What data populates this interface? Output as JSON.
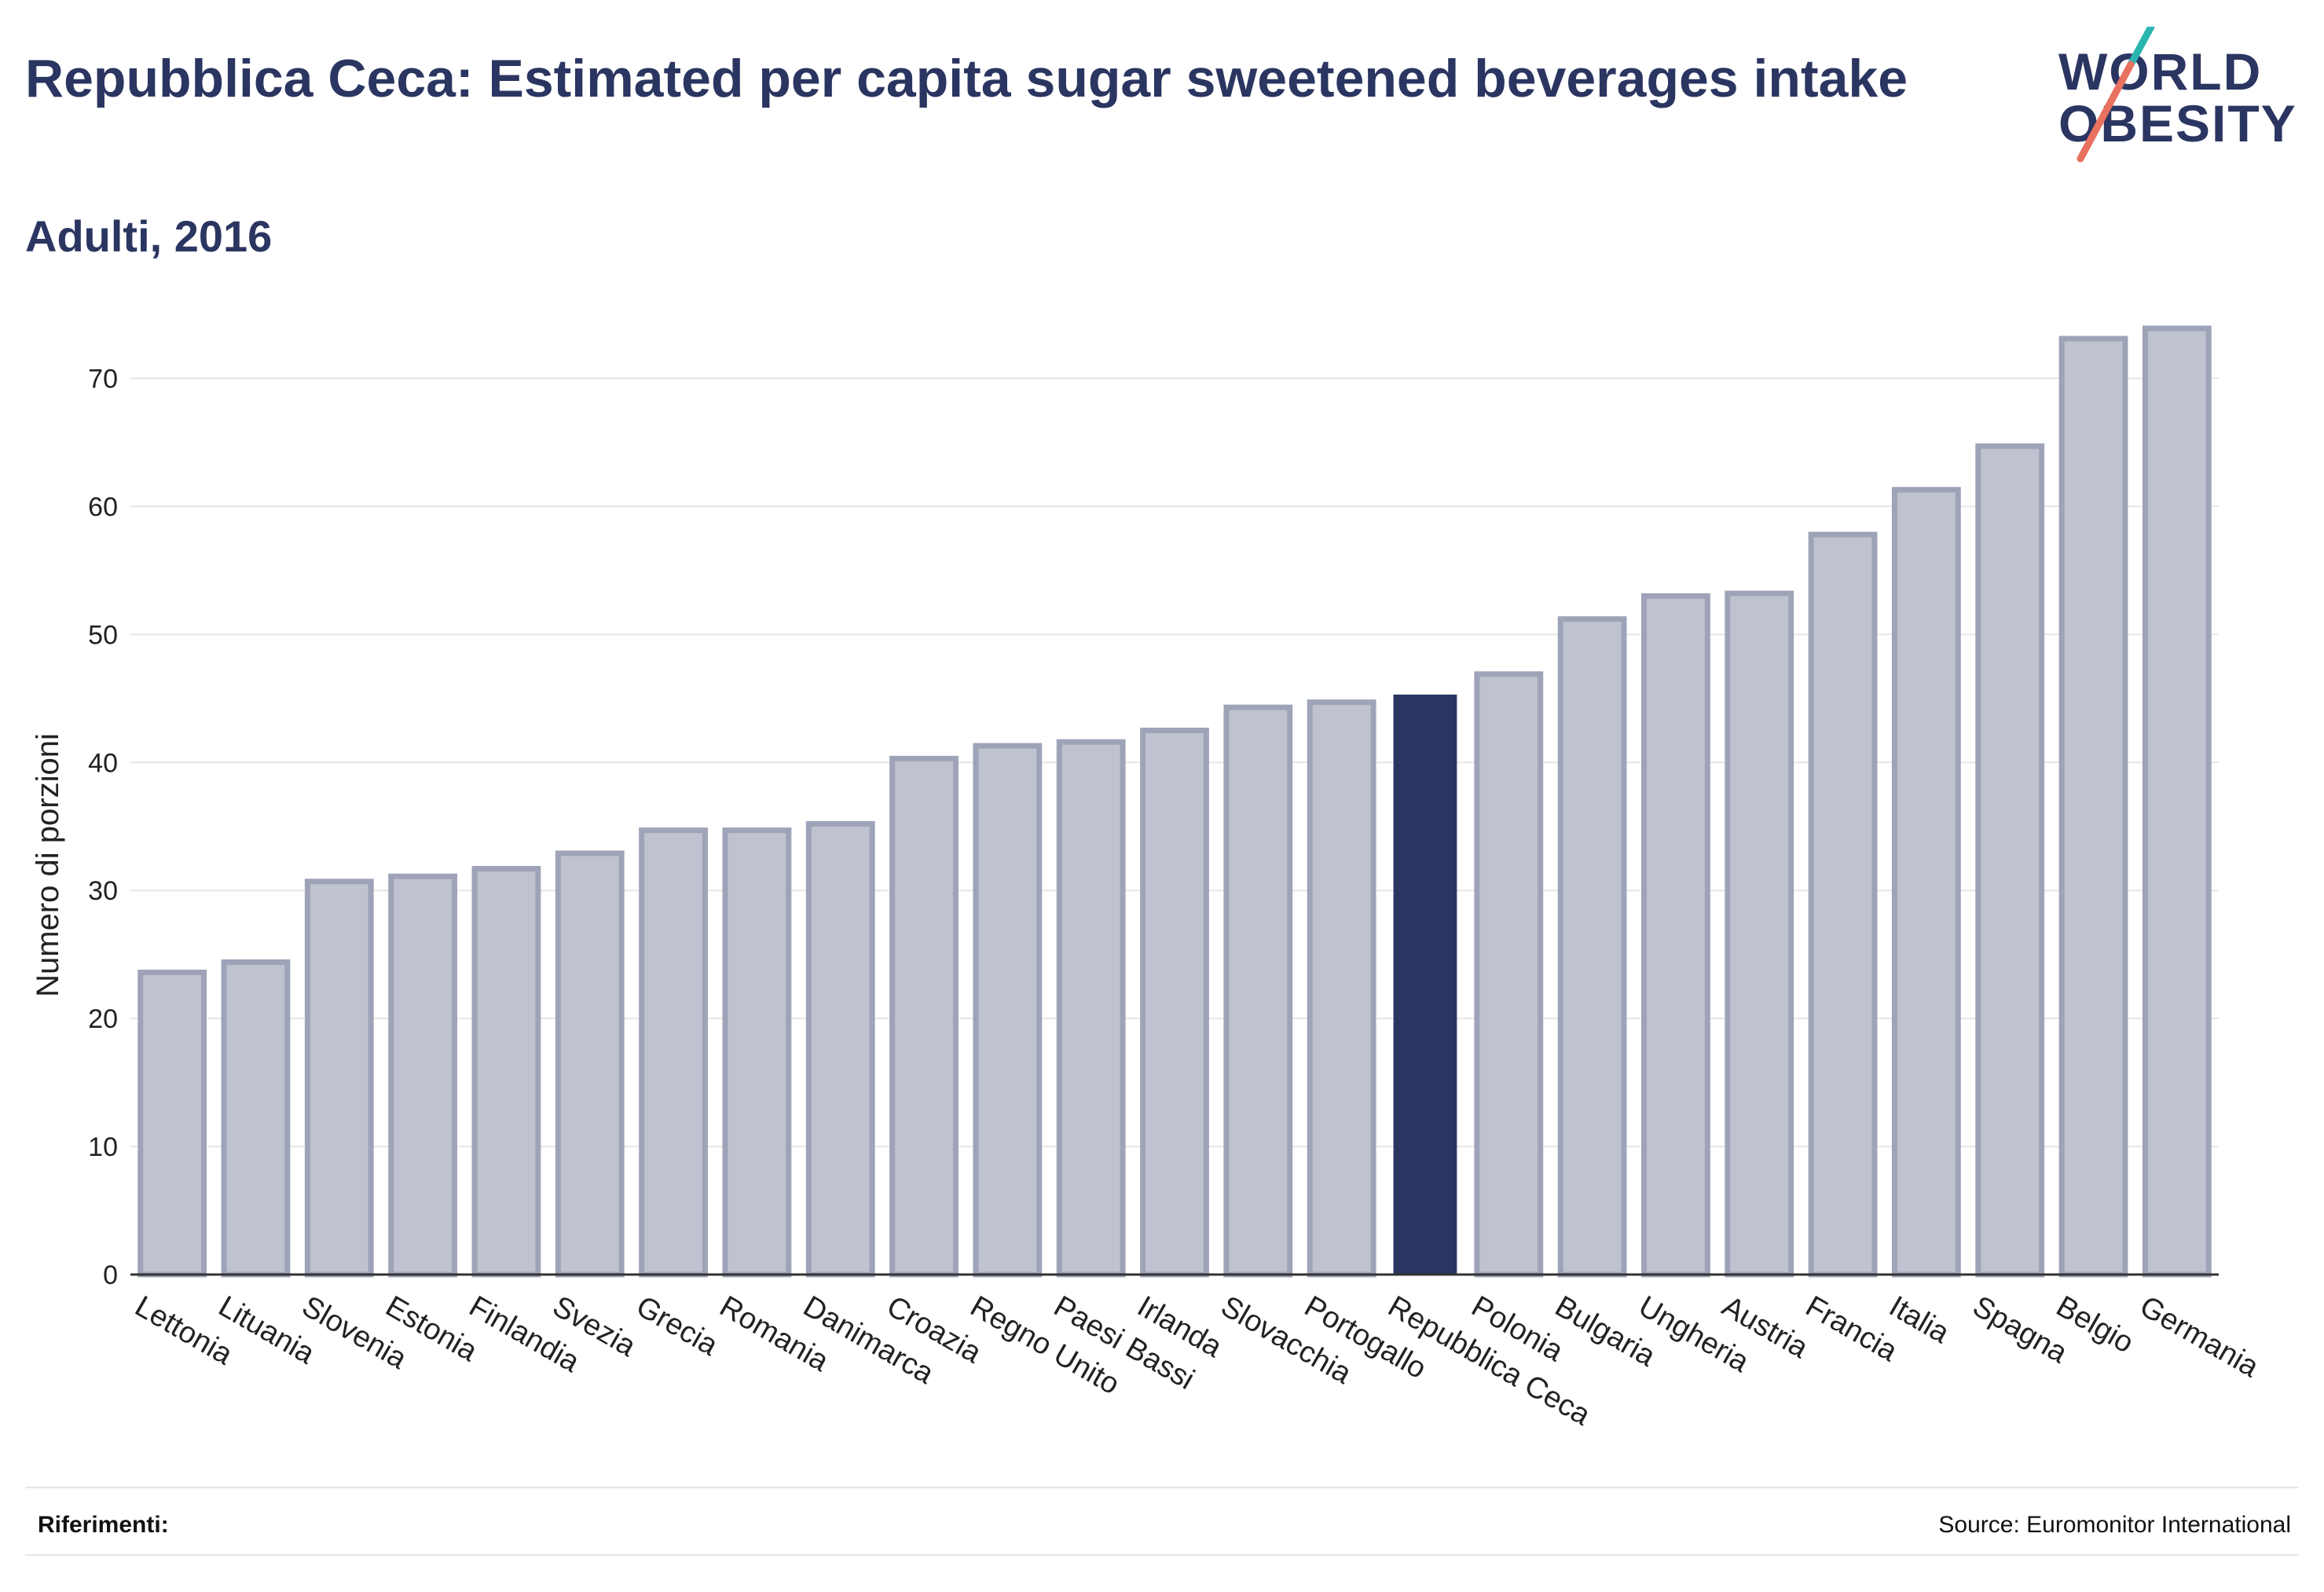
{
  "header": {
    "title": "Repubblica Ceca: Estimated per capita sugar sweetened beverages intake",
    "subtitle": "Adulti, 2016"
  },
  "logo": {
    "line1": "WORLD",
    "line2": "OBESITY"
  },
  "footer": {
    "references_label": "Riferimenti:",
    "source": "Source: Euromonitor International"
  },
  "colors": {
    "bar_default": "#bfc2cf",
    "bar_default_stroke": "#9ea3b8",
    "bar_highlight": "#2b3561",
    "title": "#2b3561",
    "logo_teal": "#2bb5b0",
    "logo_coral": "#e8715f",
    "gridline": "#e6e6e6"
  },
  "chart_data": {
    "type": "bar",
    "ylabel": "Numero di porzioni",
    "xlabel": "",
    "ylim": [
      0,
      75
    ],
    "yticks": [
      0,
      10,
      20,
      30,
      40,
      50,
      60,
      70
    ],
    "grid": true,
    "highlight": "Repubblica Ceca",
    "categories": [
      "Lettonia",
      "Lituania",
      "Slovenia",
      "Estonia",
      "Finlandia",
      "Svezia",
      "Grecia",
      "Romania",
      "Danimarca",
      "Croazia",
      "Regno Unito",
      "Paesi Bassi",
      "Irlanda",
      "Slovacchia",
      "Portogallo",
      "Repubblica Ceca",
      "Polonia",
      "Bulgaria",
      "Ungheria",
      "Austria",
      "Francia",
      "Italia",
      "Spagna",
      "Belgio",
      "Germania"
    ],
    "values": [
      23.6,
      24.4,
      30.7,
      31.1,
      31.7,
      32.9,
      34.7,
      34.7,
      35.2,
      40.3,
      41.3,
      41.6,
      42.5,
      44.3,
      44.7,
      45.3,
      46.9,
      51.2,
      53.0,
      53.2,
      57.8,
      61.3,
      64.7,
      73.1,
      73.9
    ]
  }
}
